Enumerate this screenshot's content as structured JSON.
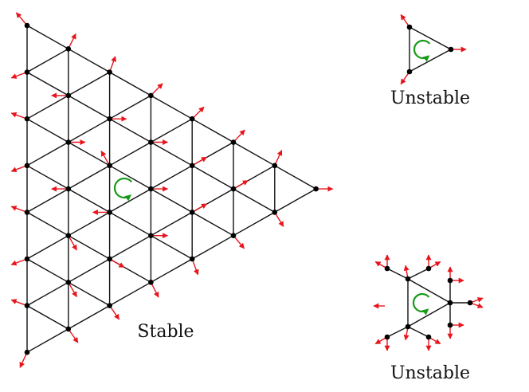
{
  "captions": {
    "stable": "Stable",
    "unstable_top": "Unstable",
    "unstable_bottom": "Unstable"
  },
  "colors": {
    "edge": "#111111",
    "node": "#000000",
    "arrow": "#e8141c",
    "rotation": "#1a9a1a",
    "background": "#ffffff"
  },
  "icons": {
    "rotation": "counterclockwise-rotation-icon",
    "force": "red-force-arrow-icon"
  }
}
